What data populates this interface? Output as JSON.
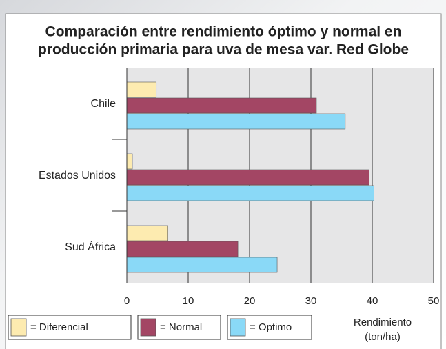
{
  "chart_data": {
    "type": "barh",
    "title": [
      "Comparación entre rendimiento óptimo y normal en",
      "producción primaria para uva de mesa var. Red Globe"
    ],
    "categories": [
      "Chile",
      "Estados Unidos",
      "Sud África"
    ],
    "series": [
      {
        "name": "= Diferencial",
        "color": "#fdebb0",
        "values": [
          4.8,
          0.9,
          6.6
        ]
      },
      {
        "name": "= Normal",
        "color": "#a34664",
        "values": [
          30.9,
          39.5,
          18.1
        ]
      },
      {
        "name": "= Optimo",
        "color": "#8ad9f7",
        "values": [
          35.6,
          40.3,
          24.5
        ]
      }
    ],
    "xlabel": [
      "Rendimiento",
      "(ton/ha)"
    ],
    "xlim": [
      0,
      50
    ],
    "xticks": [
      0,
      10,
      20,
      30,
      40,
      50
    ],
    "grid": true
  }
}
